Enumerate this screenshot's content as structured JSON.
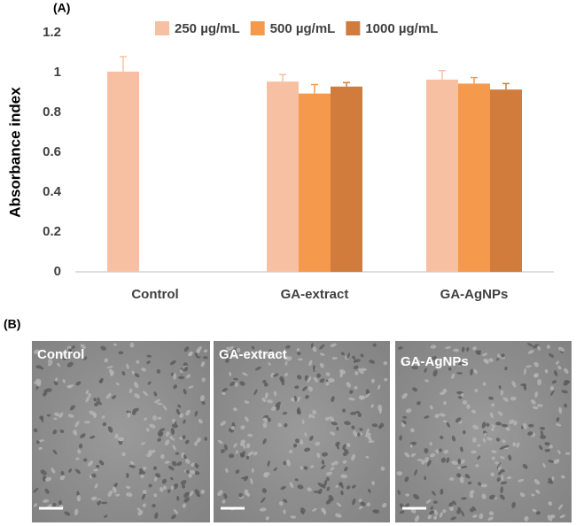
{
  "panel_a_label": "(A)",
  "chart_data": {
    "type": "bar",
    "y_label": "Absorbance index",
    "categories": [
      "Control",
      "GA-extract",
      "GA-AgNPs"
    ],
    "series": [
      {
        "name": "250 µg/mL",
        "color": "#f7c0a3",
        "values": [
          1.005,
          0.955,
          0.965
        ],
        "errors": [
          0.075,
          0.035,
          0.045
        ]
      },
      {
        "name": "500 µg/mL",
        "color": "#f59a4d",
        "values": [
          null,
          0.895,
          0.945
        ],
        "errors": [
          null,
          0.045,
          0.03
        ]
      },
      {
        "name": "1000 µg/mL",
        "color": "#d17c3c",
        "values": [
          null,
          0.93,
          0.915
        ],
        "errors": [
          null,
          0.02,
          0.03
        ]
      }
    ],
    "ylim": [
      0,
      1.2
    ],
    "yticks": [
      0,
      0.2,
      0.4,
      0.6,
      0.8,
      1,
      1.2
    ],
    "grid": false,
    "legend": "top"
  },
  "panel_b": {
    "label": "(B)",
    "images": [
      {
        "label": "Control"
      },
      {
        "label": "GA-extract"
      },
      {
        "label": "GA-AgNPs"
      }
    ]
  }
}
